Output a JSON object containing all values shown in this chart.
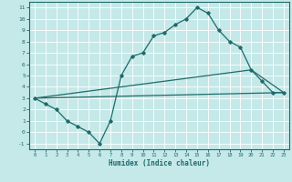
{
  "xlabel": "Humidex (Indice chaleur)",
  "bg_color": "#c5e8e8",
  "grid_color": "#ffffff",
  "line_color": "#1e6b6b",
  "xlim": [
    -0.5,
    23.5
  ],
  "ylim": [
    -1.5,
    11.5
  ],
  "xticks": [
    0,
    1,
    2,
    3,
    4,
    5,
    6,
    7,
    8,
    9,
    10,
    11,
    12,
    13,
    14,
    15,
    16,
    17,
    18,
    19,
    20,
    21,
    22,
    23
  ],
  "yticks": [
    -1,
    0,
    1,
    2,
    3,
    4,
    5,
    6,
    7,
    8,
    9,
    10,
    11
  ],
  "line1_x": [
    0,
    1,
    2,
    3,
    4,
    5,
    6,
    7,
    8,
    9,
    10,
    11,
    12,
    13,
    14,
    15,
    16,
    17,
    18,
    19,
    20,
    21,
    22,
    23
  ],
  "line1_y": [
    3,
    2.5,
    2.0,
    1.0,
    0.5,
    0.0,
    -1.0,
    1.0,
    5.0,
    6.7,
    7.0,
    8.5,
    8.8,
    9.5,
    10.0,
    11.0,
    10.5,
    9.0,
    8.0,
    7.5,
    5.5,
    4.5,
    3.5,
    3.5
  ],
  "line2_x": [
    0,
    23
  ],
  "line2_y": [
    3.0,
    3.5
  ],
  "line3_x": [
    0,
    20,
    23
  ],
  "line3_y": [
    3.0,
    5.5,
    3.5
  ]
}
